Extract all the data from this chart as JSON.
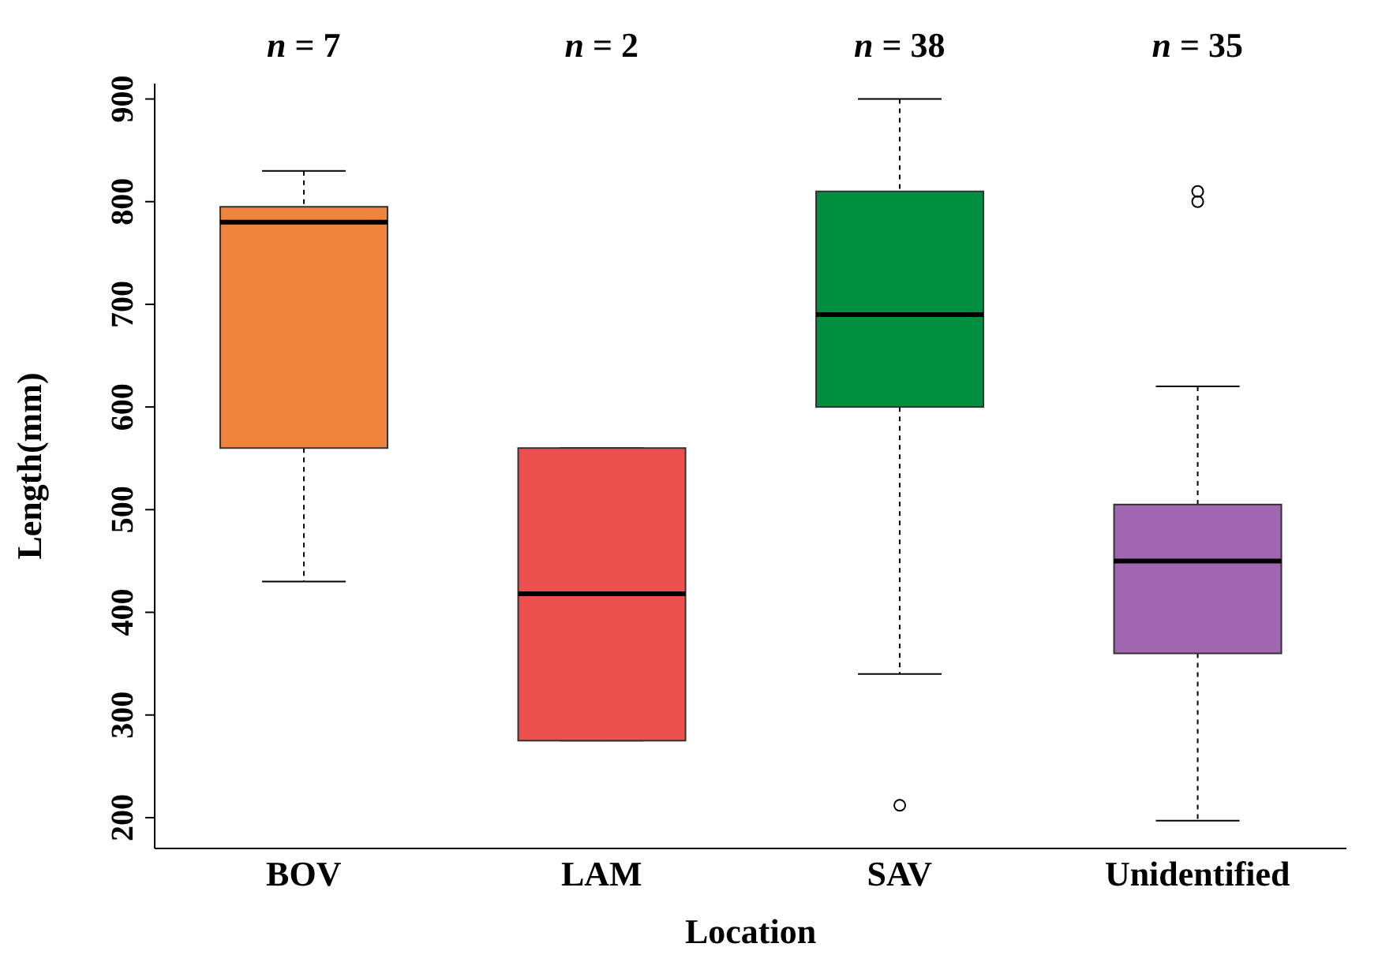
{
  "chart_data": {
    "type": "box",
    "xlabel": "Location",
    "ylabel": "Length(mm)",
    "categories": [
      "BOV",
      "LAM",
      "SAV",
      "Unidentified"
    ],
    "colors": [
      "#ee843d",
      "#ee5050",
      "#008f3f",
      "#a066b0"
    ],
    "boxes": [
      {
        "low": 430,
        "q1": 560,
        "median": 780,
        "q3": 795,
        "high": 830
      },
      {
        "low": 275,
        "q1": 275,
        "median": 418,
        "q3": 560,
        "high": 560
      },
      {
        "low": 340,
        "q1": 600,
        "median": 690,
        "q3": 810,
        "high": 900,
        "outliers": [
          212
        ]
      },
      {
        "low": 197,
        "q1": 360,
        "median": 450,
        "q3": 505,
        "high": 620,
        "outliers": [
          800,
          810
        ]
      }
    ],
    "annotations": [
      "n = 7",
      "n = 2",
      "n = 38",
      "n = 35"
    ],
    "ylim": [
      170,
      915
    ],
    "yticks": [
      200,
      300,
      400,
      500,
      600,
      700,
      800,
      900
    ],
    "grid": false,
    "legend": false
  }
}
